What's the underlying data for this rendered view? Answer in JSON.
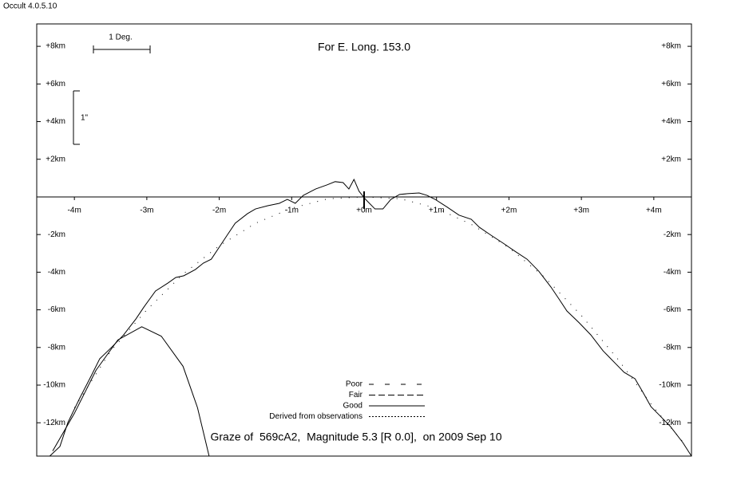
{
  "app_label": "Occult 4.0.5.10",
  "chart_data": {
    "type": "line",
    "title": "For E. Long. 153.0",
    "scale_labels": {
      "degree": "1 Deg.",
      "arcsec": "1\""
    },
    "footer": "Graze of  569cA2,  Magnitude 5.3 [R 0.0],  on 2009 Sep 10",
    "legend": [
      "Poor",
      "Fair",
      "Good",
      "Derived from observations"
    ],
    "xlim": [
      -4.52,
      4.52
    ],
    "ylim": [
      -13.77,
      9.19
    ],
    "xticks": [
      {
        "value": -4,
        "label": "-4m"
      },
      {
        "value": -3,
        "label": "-3m"
      },
      {
        "value": -2,
        "label": "-2m"
      },
      {
        "value": -1,
        "label": "-1m"
      },
      {
        "value": 0,
        "label": "+0m"
      },
      {
        "value": 1,
        "label": "+1m"
      },
      {
        "value": 2,
        "label": "+2m"
      },
      {
        "value": 3,
        "label": "+3m"
      },
      {
        "value": 4,
        "label": "+4m"
      }
    ],
    "yticks": [
      {
        "value": 8,
        "label": "+8km"
      },
      {
        "value": 6,
        "label": "+6km"
      },
      {
        "value": 4,
        "label": "+4km"
      },
      {
        "value": 2,
        "label": "+2km"
      },
      {
        "value": -2,
        "label": "-2km"
      },
      {
        "value": -4,
        "label": "-4km"
      },
      {
        "value": -6,
        "label": "-6km"
      },
      {
        "value": -8,
        "label": "-8km"
      },
      {
        "value": -10,
        "label": "-10km"
      },
      {
        "value": -12,
        "label": "-12km"
      }
    ],
    "series": [
      {
        "color": "#000000",
        "line_style": "solid",
        "x": [
          -4.34,
          -4.2,
          -4.09,
          -3.93,
          -3.76,
          -3.65,
          -3.48,
          -3.32,
          -3.15,
          -3.04,
          -2.88,
          -2.71,
          -2.6,
          -2.49,
          -2.33,
          -2.22,
          -2.11,
          -2.0,
          -1.89,
          -1.78,
          -1.61,
          -1.5,
          -1.33,
          -1.17,
          -1.06,
          -0.95,
          -0.84,
          -0.67,
          -0.51,
          -0.4,
          -0.29,
          -0.21,
          -0.14,
          -0.07,
          0.02,
          0.15,
          0.26,
          0.37,
          0.49,
          0.6,
          0.76,
          0.87,
          0.98,
          1.15,
          1.31,
          1.48,
          1.59,
          1.75,
          1.92,
          2.08,
          2.25,
          2.41,
          2.58,
          2.69,
          2.8,
          2.97,
          3.13,
          3.3,
          3.46,
          3.59,
          3.74,
          3.85,
          3.96,
          4.07,
          4.23,
          4.4,
          4.52
        ],
        "values": [
          -13.77,
          -13.26,
          -11.99,
          -10.72,
          -9.45,
          -8.6,
          -7.97,
          -7.33,
          -6.48,
          -5.85,
          -5.0,
          -4.58,
          -4.28,
          -4.19,
          -3.86,
          -3.52,
          -3.31,
          -2.67,
          -2.03,
          -1.4,
          -0.89,
          -0.64,
          -0.47,
          -0.34,
          -0.13,
          -0.34,
          0.08,
          0.42,
          0.64,
          0.81,
          0.76,
          0.42,
          0.93,
          0.3,
          -0.13,
          -0.64,
          -0.64,
          -0.13,
          0.13,
          0.17,
          0.21,
          0.08,
          -0.13,
          -0.55,
          -0.97,
          -1.19,
          -1.61,
          -2.03,
          -2.46,
          -2.88,
          -3.31,
          -3.94,
          -4.79,
          -5.42,
          -6.06,
          -6.69,
          -7.33,
          -8.18,
          -8.81,
          -9.32,
          -9.66,
          -10.38,
          -11.14,
          -11.57,
          -12.2,
          -13.05,
          -13.77
        ]
      },
      {
        "color": "#000000",
        "line_style": "dotted",
        "x": [
          -4.0,
          -3.5,
          -3.0,
          -2.5,
          -2.0,
          -1.5,
          -1.0,
          -0.5,
          0,
          0.5,
          1.0,
          1.5,
          2.0,
          2.5,
          3.0,
          3.5,
          4.0,
          4.4
        ],
        "values": [
          -11.2,
          -8.2,
          -6.0,
          -4.1,
          -2.6,
          -1.4,
          -0.6,
          -0.1,
          0,
          -0.1,
          -0.6,
          -1.5,
          -2.7,
          -4.3,
          -6.3,
          -8.6,
          -11.2,
          -13.0
        ]
      },
      {
        "color": "#000000",
        "line_style": "solid",
        "x": [
          -4.3,
          -4.0,
          -3.7,
          -3.4,
          -3.07,
          -2.8,
          -2.5,
          -2.3,
          -2.14
        ],
        "values": [
          -13.5,
          -11.5,
          -9.2,
          -7.6,
          -6.9,
          -7.4,
          -9.0,
          -11.2,
          -13.77
        ]
      }
    ]
  }
}
